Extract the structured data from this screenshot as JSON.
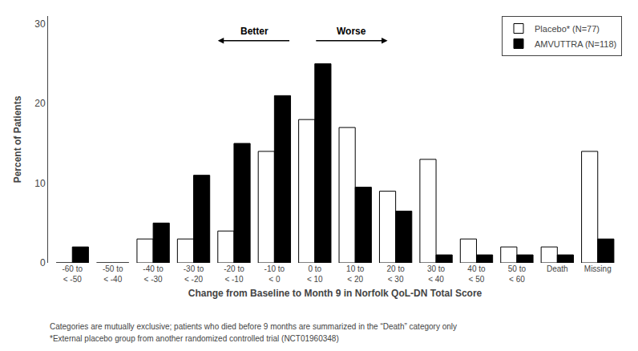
{
  "chart_data": {
    "type": "bar",
    "categories": [
      "-60 to\n< -50",
      "-50 to\n< -40",
      "-40 to\n< -30",
      "-30 to\n< -20",
      "-20 to\n< -10",
      "-10 to\n< 0",
      "0 to\n< 10",
      "10 to\n< 20",
      "20 to\n< 30",
      "30 to\n< 40",
      "40 to\n< 50",
      "50 to\n< 60",
      "Death",
      "Missing"
    ],
    "series": [
      {
        "name": "Placebo* (N=77)",
        "color": "#FFFFFF",
        "values": [
          0,
          0,
          3,
          3,
          4,
          14,
          18,
          17,
          9,
          13,
          3,
          2,
          2,
          14
        ]
      },
      {
        "name": "AMVUTTRA (N=118)",
        "color": "#000000",
        "values": [
          2,
          0,
          5,
          11,
          15,
          21,
          25,
          9.5,
          6.5,
          1,
          1,
          1,
          1,
          3
        ]
      }
    ],
    "xlabel": "Change from Baseline to Month 9 in Norfolk QoL-DN Total Score",
    "ylabel": "Percent of Patients",
    "ylim": [
      0,
      31
    ],
    "yticks": [
      0,
      10,
      20,
      30
    ],
    "grid": false,
    "legend": "upper right",
    "annotations": [
      "Better",
      "Worse"
    ],
    "footnotes": [
      "Categories are mutually exclusive; patients who died before 9 months are summarized in the “Death” category only",
      "*External placebo group from another randomized controlled trial (NCT01960348)"
    ]
  }
}
